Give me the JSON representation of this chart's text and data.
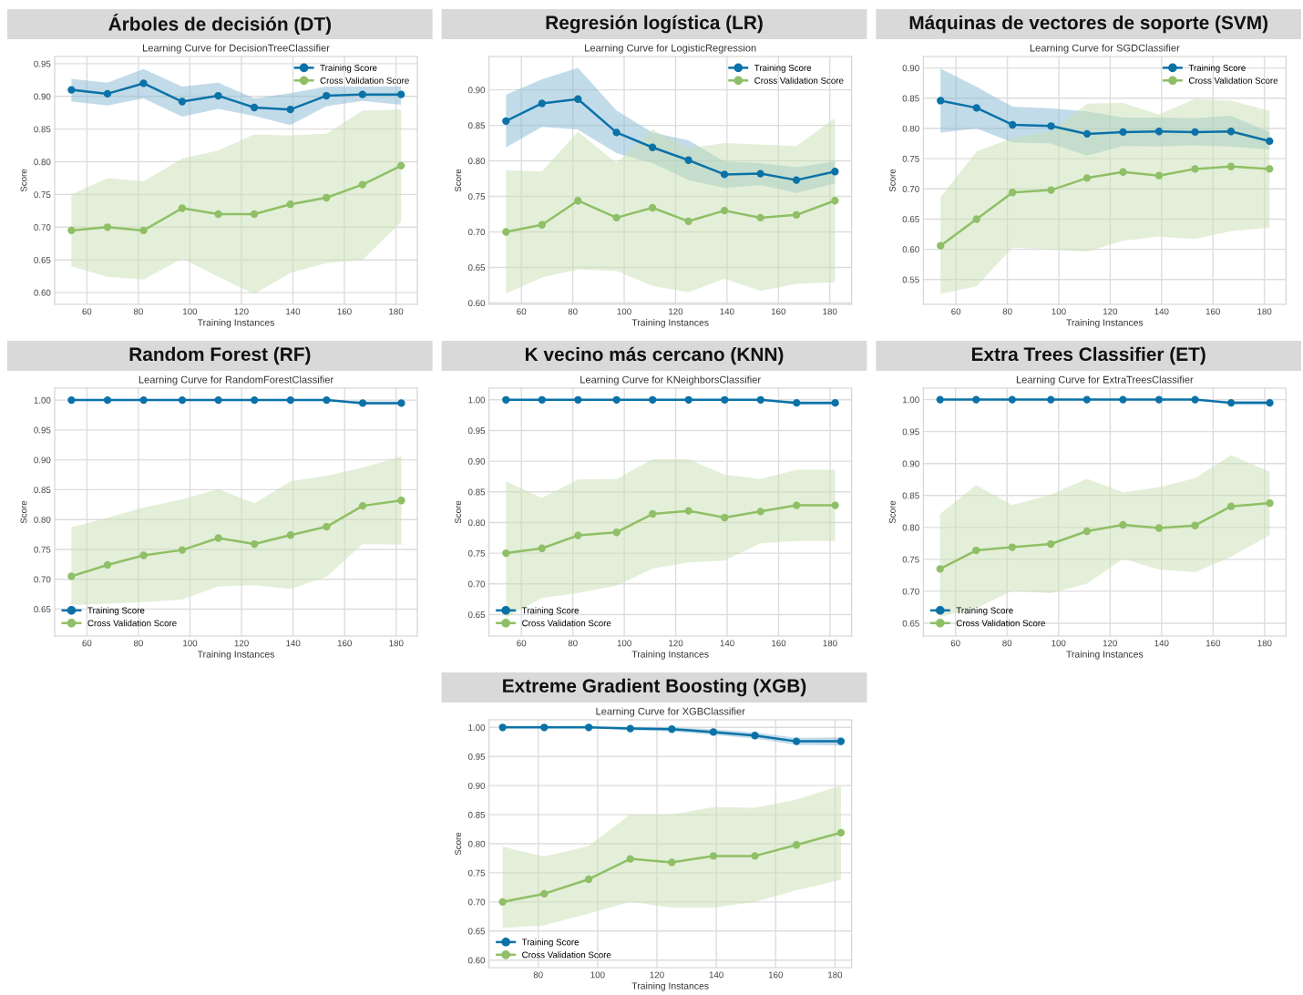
{
  "chart_data": [
    {
      "type": "line",
      "title": "Árboles de decisión (DT)",
      "subtitle": "Learning Curve for DecisionTreeClassifier",
      "xlabel": "Training Instances",
      "ylabel": "Score",
      "x": [
        54,
        68,
        82,
        97,
        111,
        125,
        139,
        153,
        167,
        182
      ],
      "xlim": [
        47.5,
        188.3
      ],
      "xticks": [
        60,
        80,
        100,
        120,
        140,
        160,
        180
      ],
      "ylim": [
        0.582,
        0.961
      ],
      "yticks": [
        {
          "value": 0.6,
          "label": "0.60"
        },
        {
          "value": 0.65,
          "label": "0.65"
        },
        {
          "value": 0.7,
          "label": "0.70"
        },
        {
          "value": 0.75,
          "label": "0.75"
        },
        {
          "value": 0.8,
          "label": "0.80"
        },
        {
          "value": 0.85,
          "label": "0.85"
        },
        {
          "value": 0.9,
          "label": "0.90"
        },
        {
          "value": 0.95,
          "label": "0.95"
        }
      ],
      "grid": true,
      "legend": "top right",
      "marker": "circle",
      "series": [
        {
          "name": "Training Score",
          "color": "#0b72a8",
          "values": [
            0.91,
            0.904,
            0.92,
            0.892,
            0.901,
            0.883,
            0.88,
            0.901,
            0.903,
            0.903
          ],
          "lower": [
            0.892,
            0.886,
            0.897,
            0.869,
            0.881,
            0.87,
            0.856,
            0.885,
            0.893,
            0.887
          ],
          "upper": [
            0.927,
            0.921,
            0.942,
            0.915,
            0.921,
            0.897,
            0.905,
            0.915,
            0.915,
            0.915
          ]
        },
        {
          "name": "Cross Validation Score",
          "color": "#8fbf66",
          "values": [
            0.695,
            0.7,
            0.695,
            0.729,
            0.72,
            0.72,
            0.735,
            0.745,
            0.765,
            0.794
          ],
          "lower": [
            0.64,
            0.624,
            0.62,
            0.652,
            0.624,
            0.598,
            0.63,
            0.645,
            0.65,
            0.708
          ],
          "upper": [
            0.75,
            0.775,
            0.77,
            0.805,
            0.817,
            0.842,
            0.84,
            0.843,
            0.878,
            0.88
          ]
        }
      ]
    },
    {
      "type": "line",
      "title": "Regresión logística (LR)",
      "subtitle": "Learning Curve for LogisticRegression",
      "xlabel": "Training Instances",
      "ylabel": "Score",
      "x": [
        54,
        68,
        82,
        97,
        111,
        125,
        139,
        153,
        167,
        182
      ],
      "xlim": [
        47.4,
        188.5
      ],
      "xticks": [
        60,
        80,
        100,
        120,
        140,
        160,
        180
      ],
      "ylim": [
        0.598,
        0.947
      ],
      "yticks": [
        {
          "value": 0.6,
          "label": "0.60"
        },
        {
          "value": 0.65,
          "label": "0.65"
        },
        {
          "value": 0.7,
          "label": "0.70"
        },
        {
          "value": 0.75,
          "label": "0.75"
        },
        {
          "value": 0.8,
          "label": "0.80"
        },
        {
          "value": 0.85,
          "label": "0.85"
        },
        {
          "value": 0.9,
          "label": "0.90"
        }
      ],
      "grid": true,
      "legend": "top right",
      "marker": "circle",
      "series": [
        {
          "name": "Training Score",
          "color": "#0b72a8",
          "values": [
            0.856,
            0.881,
            0.887,
            0.84,
            0.819,
            0.801,
            0.781,
            0.782,
            0.773,
            0.785
          ],
          "lower": [
            0.819,
            0.848,
            0.844,
            0.811,
            0.797,
            0.773,
            0.762,
            0.766,
            0.755,
            0.768
          ],
          "upper": [
            0.893,
            0.915,
            0.931,
            0.871,
            0.84,
            0.829,
            0.799,
            0.797,
            0.791,
            0.799
          ]
        },
        {
          "name": "Cross Validation Score",
          "color": "#8fbf66",
          "values": [
            0.7,
            0.71,
            0.744,
            0.72,
            0.734,
            0.715,
            0.73,
            0.72,
            0.724,
            0.744
          ],
          "lower": [
            0.613,
            0.636,
            0.647,
            0.645,
            0.624,
            0.615,
            0.634,
            0.617,
            0.627,
            0.629
          ],
          "upper": [
            0.787,
            0.785,
            0.841,
            0.797,
            0.844,
            0.818,
            0.825,
            0.823,
            0.821,
            0.86
          ]
        }
      ]
    },
    {
      "type": "line",
      "title": "Máquinas de vectores de soporte (SVM)",
      "subtitle": "Learning Curve for SGDClassifier",
      "xlabel": "Training Instances",
      "ylabel": "Score",
      "x": [
        54,
        68,
        82,
        97,
        111,
        125,
        139,
        153,
        167,
        182
      ],
      "xlim": [
        47.3,
        188.4
      ],
      "xticks": [
        60,
        80,
        100,
        120,
        140,
        160,
        180
      ],
      "ylim": [
        0.509,
        0.919
      ],
      "yticks": [
        {
          "value": 0.55,
          "label": "0.55"
        },
        {
          "value": 0.6,
          "label": "0.60"
        },
        {
          "value": 0.65,
          "label": "0.65"
        },
        {
          "value": 0.7,
          "label": "0.70"
        },
        {
          "value": 0.75,
          "label": "0.75"
        },
        {
          "value": 0.8,
          "label": "0.80"
        },
        {
          "value": 0.85,
          "label": "0.85"
        },
        {
          "value": 0.9,
          "label": "0.90"
        }
      ],
      "grid": true,
      "legend": "top right",
      "marker": "circle",
      "series": [
        {
          "name": "Training Score",
          "color": "#0b72a8",
          "values": [
            0.846,
            0.834,
            0.806,
            0.804,
            0.791,
            0.794,
            0.795,
            0.794,
            0.795,
            0.779
          ],
          "lower": [
            0.793,
            0.8,
            0.777,
            0.775,
            0.755,
            0.771,
            0.77,
            0.772,
            0.77,
            0.765
          ],
          "upper": [
            0.899,
            0.869,
            0.836,
            0.833,
            0.828,
            0.818,
            0.818,
            0.817,
            0.821,
            0.794
          ]
        },
        {
          "name": "Cross Validation Score",
          "color": "#8fbf66",
          "values": [
            0.606,
            0.65,
            0.694,
            0.698,
            0.718,
            0.728,
            0.722,
            0.733,
            0.737,
            0.733
          ],
          "lower": [
            0.526,
            0.539,
            0.603,
            0.6,
            0.596,
            0.614,
            0.621,
            0.617,
            0.63,
            0.636
          ],
          "upper": [
            0.686,
            0.762,
            0.784,
            0.795,
            0.841,
            0.842,
            0.823,
            0.849,
            0.846,
            0.829
          ]
        }
      ]
    },
    {
      "type": "line",
      "title": "Random Forest (RF)",
      "subtitle": "Learning Curve for RandomForestClassifier",
      "xlabel": "Training Instances",
      "ylabel": "Score",
      "x": [
        54,
        68,
        82,
        97,
        111,
        125,
        139,
        153,
        167,
        182
      ],
      "xlim": [
        47.5,
        188.2
      ],
      "xticks": [
        60,
        80,
        100,
        120,
        140,
        160,
        180
      ],
      "ylim": [
        0.605,
        1.02
      ],
      "yticks": [
        {
          "value": 0.65,
          "label": "0.65"
        },
        {
          "value": 0.7,
          "label": "0.70"
        },
        {
          "value": 0.75,
          "label": "0.75"
        },
        {
          "value": 0.8,
          "label": "0.80"
        },
        {
          "value": 0.85,
          "label": "0.85"
        },
        {
          "value": 0.9,
          "label": "0.90"
        },
        {
          "value": 0.95,
          "label": "0.95"
        },
        {
          "value": 1.0,
          "label": "1.00"
        }
      ],
      "grid": true,
      "legend": "bottom left",
      "marker": "circle",
      "series": [
        {
          "name": "Training Score",
          "color": "#0b72a8",
          "values": [
            1.0,
            1.0,
            1.0,
            1.0,
            1.0,
            1.0,
            1.0,
            1.0,
            0.995,
            0.995
          ],
          "lower": [
            1.0,
            1.0,
            1.0,
            1.0,
            1.0,
            1.0,
            1.0,
            1.0,
            0.992,
            0.992
          ],
          "upper": [
            1.0,
            1.0,
            1.0,
            1.0,
            1.0,
            1.0,
            1.0,
            1.0,
            0.998,
            0.998
          ]
        },
        {
          "name": "Cross Validation Score",
          "color": "#8fbf66",
          "values": [
            0.705,
            0.724,
            0.74,
            0.749,
            0.769,
            0.759,
            0.774,
            0.788,
            0.823,
            0.832
          ],
          "lower": [
            0.657,
            0.659,
            0.662,
            0.666,
            0.688,
            0.69,
            0.684,
            0.704,
            0.759,
            0.758
          ],
          "upper": [
            0.787,
            0.803,
            0.82,
            0.834,
            0.851,
            0.827,
            0.864,
            0.873,
            0.887,
            0.906
          ]
        }
      ]
    },
    {
      "type": "line",
      "title": "K vecino más cercano (KNN)",
      "subtitle": "Learning Curve for KNeighborsClassifier",
      "xlabel": "Training Instances",
      "ylabel": "Score",
      "x": [
        54,
        68,
        82,
        97,
        111,
        125,
        139,
        153,
        167,
        182
      ],
      "xlim": [
        47.4,
        188.4
      ],
      "xticks": [
        60,
        80,
        100,
        120,
        140,
        160,
        180
      ],
      "ylim": [
        0.615,
        1.019
      ],
      "yticks": [
        {
          "value": 0.65,
          "label": "0.65"
        },
        {
          "value": 0.7,
          "label": "0.70"
        },
        {
          "value": 0.75,
          "label": "0.75"
        },
        {
          "value": 0.8,
          "label": "0.80"
        },
        {
          "value": 0.85,
          "label": "0.85"
        },
        {
          "value": 0.9,
          "label": "0.90"
        },
        {
          "value": 0.95,
          "label": "0.95"
        },
        {
          "value": 1.0,
          "label": "1.00"
        }
      ],
      "grid": true,
      "legend": "bottom left",
      "marker": "circle",
      "series": [
        {
          "name": "Training Score",
          "color": "#0b72a8",
          "values": [
            1.0,
            1.0,
            1.0,
            1.0,
            1.0,
            1.0,
            1.0,
            1.0,
            0.995,
            0.995
          ],
          "lower": [
            1.0,
            1.0,
            1.0,
            1.0,
            1.0,
            1.0,
            1.0,
            1.0,
            0.992,
            0.992
          ],
          "upper": [
            1.0,
            1.0,
            1.0,
            1.0,
            1.0,
            1.0,
            1.0,
            1.0,
            0.998,
            0.998
          ]
        },
        {
          "name": "Cross Validation Score",
          "color": "#8fbf66",
          "values": [
            0.75,
            0.758,
            0.779,
            0.784,
            0.814,
            0.819,
            0.808,
            0.818,
            0.828,
            0.828
          ],
          "lower": [
            0.645,
            0.677,
            0.685,
            0.697,
            0.725,
            0.735,
            0.738,
            0.766,
            0.77,
            0.77
          ],
          "upper": [
            0.867,
            0.84,
            0.87,
            0.871,
            0.903,
            0.903,
            0.878,
            0.871,
            0.886,
            0.886
          ]
        }
      ]
    },
    {
      "type": "line",
      "title": "Extra Trees Classifier (ET)",
      "subtitle": "Learning Curve for ExtraTreesClassifier",
      "xlabel": "Training Instances",
      "ylabel": "Score",
      "x": [
        54,
        68,
        82,
        97,
        111,
        125,
        139,
        153,
        167,
        182
      ],
      "xlim": [
        47.5,
        188.3
      ],
      "xticks": [
        60,
        80,
        100,
        120,
        140,
        160,
        180
      ],
      "ylim": [
        0.63,
        1.018
      ],
      "yticks": [
        {
          "value": 0.65,
          "label": "0.65"
        },
        {
          "value": 0.7,
          "label": "0.70"
        },
        {
          "value": 0.75,
          "label": "0.75"
        },
        {
          "value": 0.8,
          "label": "0.80"
        },
        {
          "value": 0.85,
          "label": "0.85"
        },
        {
          "value": 0.9,
          "label": "0.90"
        },
        {
          "value": 0.95,
          "label": "0.95"
        },
        {
          "value": 1.0,
          "label": "1.00"
        }
      ],
      "grid": true,
      "legend": "bottom left",
      "marker": "circle",
      "series": [
        {
          "name": "Training Score",
          "color": "#0b72a8",
          "values": [
            1.0,
            1.0,
            1.0,
            1.0,
            1.0,
            1.0,
            1.0,
            1.0,
            0.995,
            0.995
          ],
          "lower": [
            1.0,
            1.0,
            1.0,
            1.0,
            1.0,
            1.0,
            1.0,
            1.0,
            0.992,
            0.992
          ],
          "upper": [
            1.0,
            1.0,
            1.0,
            1.0,
            1.0,
            1.0,
            1.0,
            1.0,
            0.998,
            0.998
          ]
        },
        {
          "name": "Cross Validation Score",
          "color": "#8fbf66",
          "values": [
            0.735,
            0.764,
            0.769,
            0.774,
            0.794,
            0.804,
            0.799,
            0.803,
            0.833,
            0.838
          ],
          "lower": [
            0.66,
            0.673,
            0.701,
            0.697,
            0.712,
            0.751,
            0.734,
            0.73,
            0.754,
            0.788
          ],
          "upper": [
            0.821,
            0.866,
            0.835,
            0.851,
            0.876,
            0.855,
            0.863,
            0.877,
            0.913,
            0.887
          ]
        }
      ]
    },
    {
      "type": "line",
      "title": "Extreme Gradient Boosting (XGB)",
      "subtitle": "Learning Curve for XGBClassifier",
      "xlabel": "Training Instances",
      "ylabel": "Score",
      "x": [
        68,
        82,
        97,
        111,
        125,
        139,
        153,
        167,
        182
      ],
      "xlim": [
        63.4,
        185.6
      ],
      "xticks": [
        80,
        100,
        120,
        140,
        160,
        180
      ],
      "ylim": [
        0.587,
        1.013
      ],
      "yticks": [
        {
          "value": 0.6,
          "label": "0.60"
        },
        {
          "value": 0.65,
          "label": "0.65"
        },
        {
          "value": 0.7,
          "label": "0.70"
        },
        {
          "value": 0.75,
          "label": "0.75"
        },
        {
          "value": 0.8,
          "label": "0.80"
        },
        {
          "value": 0.85,
          "label": "0.85"
        },
        {
          "value": 0.9,
          "label": "0.90"
        },
        {
          "value": 0.95,
          "label": "0.95"
        },
        {
          "value": 1.0,
          "label": "1.00"
        }
      ],
      "grid": true,
      "legend": "bottom left",
      "marker": "circle",
      "series": [
        {
          "name": "Training Score",
          "color": "#0b72a8",
          "values": [
            1.0,
            1.0,
            1.0,
            0.998,
            0.997,
            0.992,
            0.986,
            0.976,
            0.976
          ],
          "lower": [
            1.0,
            1.0,
            1.0,
            0.995,
            0.993,
            0.987,
            0.981,
            0.97,
            0.969
          ],
          "upper": [
            1.0,
            1.0,
            1.0,
            1.0,
            1.0,
            0.997,
            0.991,
            0.982,
            0.983
          ]
        },
        {
          "name": "Cross Validation Score",
          "color": "#8fbf66",
          "values": [
            0.7,
            0.714,
            0.739,
            0.774,
            0.768,
            0.779,
            0.779,
            0.798,
            0.819
          ],
          "lower": [
            0.655,
            0.66,
            0.68,
            0.7,
            0.69,
            0.69,
            0.7,
            0.72,
            0.738
          ],
          "upper": [
            0.795,
            0.778,
            0.796,
            0.85,
            0.85,
            0.863,
            0.862,
            0.876,
            0.9
          ]
        }
      ]
    }
  ]
}
